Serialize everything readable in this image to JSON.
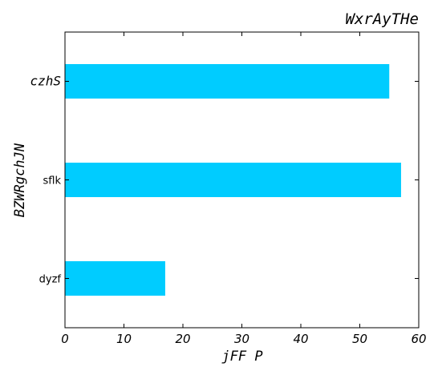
{
  "chart_data": {
    "type": "bar",
    "orientation": "horizontal",
    "title": "WxrAyTHe",
    "xlabel": "jFF P",
    "ylabel": "BZWRgchJN",
    "categories": [
      "czhS",
      "sflk",
      "dyzf"
    ],
    "values": [
      55,
      57,
      17
    ],
    "xlim": [
      0,
      60
    ],
    "xticks": [
      0,
      10,
      20,
      30,
      40,
      50,
      60
    ],
    "bar_color": "#00ccff",
    "grid": false
  }
}
